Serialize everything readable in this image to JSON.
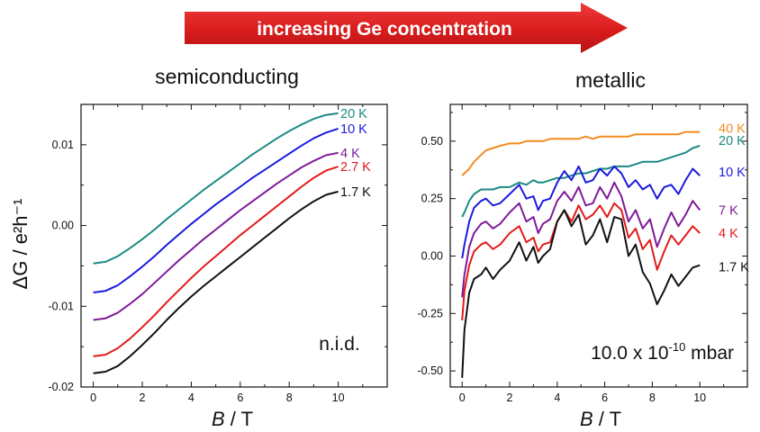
{
  "banner": {
    "text": "increasing Ge concentration"
  },
  "chart_data": [
    {
      "type": "line",
      "title": "semiconducting",
      "xlabel_var": "B",
      "xlabel_unit": " / T",
      "ylabel": "ΔG / e²h⁻¹",
      "xlim": [
        -0.5,
        12
      ],
      "ylim": [
        -0.02,
        0.015
      ],
      "xticks": [
        0,
        2,
        4,
        6,
        8,
        10
      ],
      "yticks": [
        -0.02,
        -0.01,
        0.0,
        0.01
      ],
      "ytick_labels": [
        "-0.02",
        "-0.01",
        "0.00",
        "0.01"
      ],
      "annotation": "n.i.d.",
      "x": [
        0,
        0.5,
        1,
        1.5,
        2,
        2.5,
        3,
        3.5,
        4,
        4.5,
        5,
        5.5,
        6,
        6.5,
        7,
        7.5,
        8,
        8.5,
        9,
        9.5,
        10
      ],
      "series": [
        {
          "name": "20 K",
          "color": "#1a8a82",
          "values": [
            -0.0047,
            -0.0045,
            -0.0038,
            -0.0028,
            -0.0017,
            -0.0005,
            0.0008,
            0.002,
            0.0032,
            0.0044,
            0.0055,
            0.0066,
            0.0077,
            0.0088,
            0.0098,
            0.0108,
            0.0117,
            0.0125,
            0.0132,
            0.0137,
            0.0139
          ]
        },
        {
          "name": "10 K",
          "color": "#1a1ae0",
          "values": [
            -0.0083,
            -0.0081,
            -0.0074,
            -0.0063,
            -0.0051,
            -0.0038,
            -0.0024,
            -0.0011,
            0.0002,
            0.0014,
            0.0026,
            0.0037,
            0.0048,
            0.0059,
            0.0069,
            0.0079,
            0.0089,
            0.0099,
            0.0108,
            0.0115,
            0.012
          ]
        },
        {
          "name": "4 K",
          "color": "#7f1a9a",
          "values": [
            -0.0117,
            -0.0115,
            -0.0108,
            -0.0097,
            -0.0085,
            -0.0071,
            -0.0057,
            -0.0043,
            -0.003,
            -0.0017,
            -0.0005,
            0.0007,
            0.0019,
            0.003,
            0.0041,
            0.0052,
            0.0062,
            0.0072,
            0.008,
            0.0087,
            0.009
          ]
        },
        {
          "name": "2.7 K",
          "color": "#e31a1a",
          "values": [
            -0.0162,
            -0.016,
            -0.0152,
            -0.014,
            -0.0126,
            -0.0111,
            -0.0095,
            -0.008,
            -0.0065,
            -0.0051,
            -0.0038,
            -0.0025,
            -0.0012,
            0.0,
            0.0012,
            0.0024,
            0.0036,
            0.0048,
            0.0059,
            0.0068,
            0.0073
          ]
        },
        {
          "name": "1.7 K",
          "color": "#111111",
          "values": [
            -0.0183,
            -0.0181,
            -0.0174,
            -0.0162,
            -0.0148,
            -0.0133,
            -0.0117,
            -0.0102,
            -0.0088,
            -0.0075,
            -0.0063,
            -0.0051,
            -0.0039,
            -0.0027,
            -0.0015,
            -0.0003,
            0.0009,
            0.002,
            0.003,
            0.0038,
            0.0042
          ]
        }
      ]
    },
    {
      "type": "line",
      "title": "metallic",
      "xlabel_var": "B",
      "xlabel_unit": " / T",
      "xlim": [
        -0.5,
        12
      ],
      "ylim": [
        -0.57,
        0.66
      ],
      "xticks": [
        0,
        2,
        4,
        6,
        8,
        10
      ],
      "yticks": [
        -0.5,
        -0.25,
        0.0,
        0.25,
        0.5
      ],
      "ytick_labels": [
        "-0.50",
        "-0.25",
        "0.00",
        "0.25",
        "0.50"
      ],
      "annotation_main": "10.0 x 10",
      "annotation_exp": "-10",
      "annotation_unit": " mbar",
      "x": [
        0,
        0.1,
        0.3,
        0.5,
        0.8,
        1.0,
        1.3,
        1.6,
        2.0,
        2.4,
        2.7,
        3.0,
        3.2,
        3.4,
        3.7,
        4.0,
        4.3,
        4.6,
        4.9,
        5.2,
        5.5,
        5.8,
        6.1,
        6.4,
        6.7,
        7.0,
        7.3,
        7.6,
        7.9,
        8.2,
        8.5,
        8.8,
        9.1,
        9.4,
        9.7,
        10.0
      ],
      "series": [
        {
          "name": "40 K",
          "color": "#f28c1e",
          "values": [
            0.35,
            0.36,
            0.38,
            0.41,
            0.44,
            0.46,
            0.47,
            0.48,
            0.49,
            0.49,
            0.5,
            0.5,
            0.5,
            0.5,
            0.51,
            0.51,
            0.51,
            0.51,
            0.51,
            0.52,
            0.51,
            0.52,
            0.52,
            0.52,
            0.52,
            0.52,
            0.53,
            0.53,
            0.53,
            0.53,
            0.53,
            0.53,
            0.53,
            0.54,
            0.54,
            0.54
          ]
        },
        {
          "name": "20 K",
          "color": "#1a8a82",
          "values": [
            0.17,
            0.19,
            0.24,
            0.27,
            0.29,
            0.29,
            0.29,
            0.3,
            0.3,
            0.32,
            0.31,
            0.33,
            0.32,
            0.32,
            0.33,
            0.34,
            0.34,
            0.35,
            0.36,
            0.36,
            0.37,
            0.38,
            0.38,
            0.39,
            0.39,
            0.39,
            0.4,
            0.41,
            0.41,
            0.41,
            0.42,
            0.43,
            0.44,
            0.45,
            0.47,
            0.48
          ]
        },
        {
          "name": "10 K",
          "color": "#1a1ae0",
          "values": [
            -0.01,
            0.05,
            0.15,
            0.21,
            0.24,
            0.25,
            0.22,
            0.23,
            0.27,
            0.31,
            0.25,
            0.26,
            0.2,
            0.24,
            0.25,
            0.32,
            0.37,
            0.33,
            0.39,
            0.32,
            0.33,
            0.38,
            0.35,
            0.39,
            0.36,
            0.3,
            0.33,
            0.29,
            0.31,
            0.25,
            0.3,
            0.31,
            0.27,
            0.33,
            0.38,
            0.35
          ]
        },
        {
          "name": "7 K",
          "color": "#7f1a9a",
          "values": [
            -0.18,
            -0.08,
            0.04,
            0.1,
            0.14,
            0.15,
            0.12,
            0.14,
            0.19,
            0.23,
            0.15,
            0.17,
            0.1,
            0.14,
            0.16,
            0.24,
            0.28,
            0.24,
            0.3,
            0.22,
            0.23,
            0.3,
            0.25,
            0.32,
            0.26,
            0.15,
            0.2,
            0.12,
            0.16,
            0.04,
            0.12,
            0.19,
            0.13,
            0.18,
            0.24,
            0.2
          ]
        },
        {
          "name": "4 K",
          "color": "#e31a1a",
          "values": [
            -0.28,
            -0.15,
            -0.04,
            0.02,
            0.05,
            0.06,
            0.03,
            0.05,
            0.1,
            0.13,
            0.06,
            0.08,
            0.02,
            0.05,
            0.06,
            0.15,
            0.2,
            0.15,
            0.22,
            0.16,
            0.18,
            0.22,
            0.17,
            0.23,
            0.2,
            0.08,
            0.12,
            0.03,
            0.07,
            -0.06,
            0.02,
            0.09,
            0.05,
            0.09,
            0.13,
            0.1
          ]
        },
        {
          "name": "1.7 K",
          "color": "#111111",
          "values": [
            -0.53,
            -0.32,
            -0.16,
            -0.1,
            -0.08,
            -0.05,
            -0.1,
            -0.06,
            -0.02,
            0.06,
            -0.02,
            0.04,
            -0.03,
            0.0,
            0.03,
            0.15,
            0.2,
            0.13,
            0.18,
            0.05,
            0.09,
            0.16,
            0.06,
            0.17,
            0.16,
            0.0,
            0.05,
            -0.07,
            -0.12,
            -0.21,
            -0.15,
            -0.08,
            -0.13,
            -0.09,
            -0.05,
            -0.04
          ]
        }
      ]
    }
  ]
}
